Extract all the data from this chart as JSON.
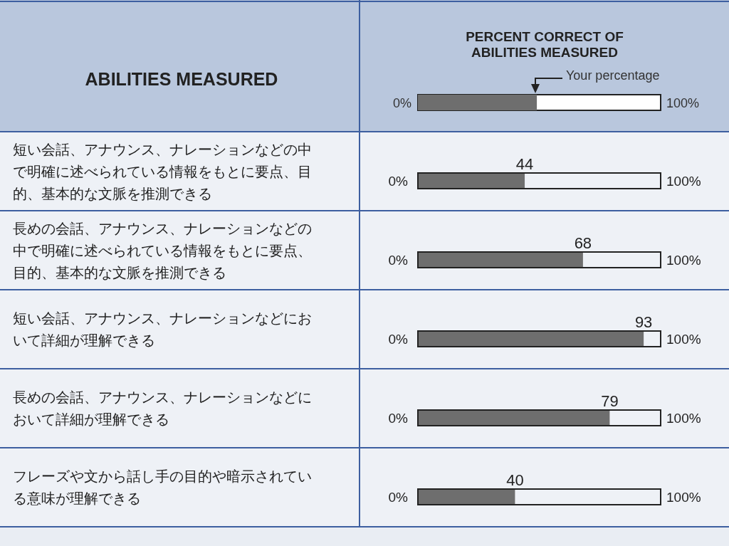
{
  "chart_data": {
    "type": "bar",
    "orientation": "horizontal",
    "title": "PERCENT CORRECT OF ABILITIES MEASURED",
    "ylabel": "ABILITIES MEASURED",
    "categories": [
      "短い会話、アナウンス、ナレーションなどの中で明確に述べられている情報をもとに要点、目的、基本的な文脈を推測できる",
      "長めの会話、アナウンス、ナレーションなどの中で明確に述べられている情報をもとに要点、目的、基本的な文脈を推測できる",
      "短い会話、アナウンス、ナレーションなどにおいて詳細が理解できる",
      "長めの会話、アナウンス、ナレーションなどにおいて詳細が理解できる",
      "フレーズや文から話し手の目的や暗示されている意味が理解できる"
    ],
    "values": [
      44,
      68,
      93,
      79,
      40
    ],
    "color": "#6e6e6e",
    "xlim": [
      0,
      100
    ],
    "data_labels": true,
    "annotations": [
      "Your percentage",
      "0%",
      "100%",
      "0%",
      "100%",
      "0%",
      "100%",
      "0%",
      "100%",
      "0%",
      "100%",
      "0%",
      "100%"
    ]
  }
}
